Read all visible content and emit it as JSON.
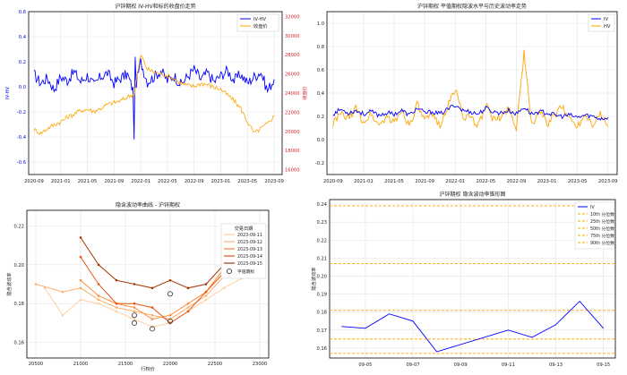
{
  "chart_data": [
    {
      "type": "line",
      "title": "沪锌期权 IV-HV和标的收盘价走势",
      "ylabel_left": "IV-HV",
      "ylabel_right": "收盘价",
      "ylim_left": [
        -0.7,
        0.6
      ],
      "yticks_left": [
        "-0.6",
        "-0.4",
        "-0.2",
        "0.0",
        "0.2",
        "0.4",
        "0.6"
      ],
      "yticks_left_values": [
        -0.6,
        -0.4,
        -0.2,
        0.0,
        0.2,
        0.4,
        0.6
      ],
      "ylim_right": [
        15500,
        32500
      ],
      "yticks_right": [
        "16000",
        "18000",
        "20000",
        "22000",
        "24000",
        "26000",
        "28000",
        "30000",
        "32000"
      ],
      "yticks_right_values": [
        16000,
        18000,
        20000,
        22000,
        24000,
        26000,
        28000,
        30000,
        32000
      ],
      "xticks": [
        "2020-09",
        "2021-01",
        "2021-05",
        "2021-09",
        "2022-01",
        "2022-05",
        "2022-09",
        "2023-01",
        "2023-05",
        "2023-09"
      ],
      "xticks_t": [
        0,
        4,
        8,
        12,
        16,
        20,
        24,
        28,
        32,
        36
      ],
      "xlim_t": [
        -0.8,
        37.2
      ],
      "legend": "top-right",
      "grid": true,
      "series": [
        {
          "name": "IV-HV",
          "color": "#0000ff",
          "axis": "left",
          "t": [
            0,
            1,
            2,
            3,
            4,
            5,
            6,
            7,
            8,
            9,
            10,
            11,
            12,
            13,
            14,
            15,
            16,
            17,
            18,
            19,
            20,
            21,
            22,
            23,
            24,
            25,
            26,
            27,
            28,
            29,
            30,
            31,
            32,
            33,
            34,
            35,
            36
          ],
          "y": [
            0.1,
            0.03,
            0.07,
            -0.02,
            0.08,
            0.05,
            0.12,
            0.04,
            0.09,
            0.01,
            0.08,
            0.11,
            0.03,
            0.07,
            0.1,
            -0.05,
            0.2,
            0.04,
            0.08,
            0.13,
            0.05,
            0.09,
            0.02,
            0.08,
            0.14,
            0.06,
            0.11,
            0.04,
            0.09,
            0.13,
            0.05,
            0.1,
            0.03,
            0.08,
            0.12,
            -0.03,
            0.06
          ]
        },
        {
          "name": "收盘价",
          "color": "#ffa500",
          "axis": "right",
          "t": [
            0,
            1,
            2,
            3,
            4,
            5,
            6,
            7,
            8,
            9,
            10,
            11,
            12,
            13,
            14,
            15,
            16,
            17,
            18,
            19,
            20,
            21,
            22,
            23,
            24,
            25,
            26,
            27,
            28,
            29,
            30,
            31,
            32,
            33,
            34,
            35,
            36
          ],
          "y": [
            20200,
            19800,
            20300,
            20700,
            21000,
            21500,
            21800,
            22200,
            22300,
            22100,
            22400,
            22800,
            23000,
            23200,
            23600,
            23900,
            28000,
            26500,
            26200,
            26000,
            25800,
            25500,
            25000,
            24800,
            24700,
            25000,
            24900,
            24600,
            24400,
            23800,
            23200,
            22400,
            21000,
            19800,
            20300,
            20800,
            21600
          ]
        }
      ]
    },
    {
      "type": "line",
      "title": "沪锌期权 平值期权隐波水平与历史波动率走势",
      "ylim": [
        -0.3,
        1.1
      ],
      "yticks": [
        "-0.2",
        "0.0",
        "0.2",
        "0.4",
        "0.6",
        "0.8",
        "1.0"
      ],
      "yticks_values": [
        -0.2,
        0.0,
        0.2,
        0.4,
        0.6,
        0.8,
        1.0
      ],
      "xticks": [
        "2020-09",
        "2021-01",
        "2021-05",
        "2021-09",
        "2022-01",
        "2022-05",
        "2022-09",
        "2023-01",
        "2023-05",
        "2023-09"
      ],
      "xticks_t": [
        0,
        4,
        8,
        12,
        16,
        20,
        24,
        28,
        32,
        36
      ],
      "xlim_t": [
        -0.8,
        37.2
      ],
      "legend": "top-right",
      "grid": true,
      "series": [
        {
          "name": "IV",
          "color": "#0000ff",
          "t": [
            0,
            1,
            2,
            3,
            4,
            5,
            6,
            7,
            8,
            9,
            10,
            11,
            12,
            13,
            14,
            15,
            16,
            17,
            18,
            19,
            20,
            21,
            22,
            23,
            24,
            25,
            26,
            27,
            28,
            29,
            30,
            31,
            32,
            33,
            34,
            35,
            36
          ],
          "y": [
            0.22,
            0.26,
            0.23,
            0.25,
            0.22,
            0.24,
            0.21,
            0.23,
            0.22,
            0.25,
            0.21,
            0.27,
            0.23,
            0.24,
            0.22,
            0.26,
            0.3,
            0.25,
            0.24,
            0.22,
            0.27,
            0.24,
            0.23,
            0.25,
            0.22,
            0.28,
            0.22,
            0.24,
            0.23,
            0.21,
            0.2,
            0.21,
            0.19,
            0.21,
            0.2,
            0.18,
            0.19
          ]
        },
        {
          "name": "HV",
          "color": "#ffa500",
          "t": [
            0,
            1,
            2,
            3,
            4,
            5,
            6,
            7,
            8,
            9,
            10,
            11,
            12,
            13,
            14,
            15,
            16,
            17,
            18,
            19,
            20,
            21,
            22,
            23,
            24,
            25,
            26,
            27,
            28,
            29,
            30,
            31,
            32,
            33,
            34,
            35,
            36
          ],
          "y": [
            0.14,
            0.22,
            0.18,
            0.27,
            0.15,
            0.22,
            0.12,
            0.2,
            0.14,
            0.26,
            0.12,
            0.3,
            0.16,
            0.21,
            0.13,
            0.28,
            0.44,
            0.21,
            0.18,
            0.12,
            0.3,
            0.17,
            0.19,
            0.28,
            0.1,
            0.74,
            0.12,
            0.26,
            0.13,
            0.21,
            0.28,
            0.18,
            0.12,
            0.22,
            0.14,
            0.22,
            0.11
          ]
        }
      ]
    },
    {
      "type": "line",
      "title": "隐含波动率曲线 - 沪锌期权",
      "xlabel": "行权价",
      "ylabel": "隐含波动率",
      "xlim": [
        20400,
        23100
      ],
      "ylim": [
        0.152,
        0.228
      ],
      "xticks": [
        "20500",
        "21000",
        "21500",
        "22000",
        "22500",
        "23000"
      ],
      "xticks_values": [
        20500,
        21000,
        21500,
        22000,
        22500,
        23000
      ],
      "yticks": [
        "0.16",
        "0.18",
        "0.20",
        "0.22"
      ],
      "yticks_values": [
        0.16,
        0.18,
        0.2,
        0.22
      ],
      "legend_title": "交易日期",
      "legend": "top-right",
      "grid": true,
      "atm_label": "平值期权",
      "series": [
        {
          "name": "2023-09-11",
          "color": "#fdd0a2",
          "x": [
            20600,
            20800,
            21000,
            21200,
            21400,
            21600,
            21800,
            22000,
            22200,
            22400,
            22600,
            22800
          ],
          "y": [
            0.188,
            0.174,
            0.182,
            0.18,
            0.176,
            0.172,
            0.168,
            0.17,
            0.176,
            0.182,
            0.188,
            0.193
          ]
        },
        {
          "name": "2023-09-12",
          "color": "#fdae6b",
          "x": [
            20500,
            20800,
            21000,
            21200,
            21400,
            21600,
            21800,
            22000,
            22200,
            22400,
            22600,
            22800,
            23000
          ],
          "y": [
            0.19,
            0.186,
            0.188,
            0.182,
            0.178,
            0.176,
            0.174,
            0.172,
            0.178,
            0.184,
            0.194,
            0.204,
            0.21
          ]
        },
        {
          "name": "2023-09-13",
          "color": "#fd8d3c",
          "x": [
            21000,
            21200,
            21400,
            21600,
            21800,
            22000,
            22200,
            22400,
            22600,
            22800,
            23000
          ],
          "y": [
            0.192,
            0.184,
            0.18,
            0.178,
            0.172,
            0.174,
            0.18,
            0.186,
            0.198,
            0.21,
            0.216
          ]
        },
        {
          "name": "2023-09-14",
          "color": "#e6550d",
          "x": [
            21000,
            21200,
            21400,
            21600,
            21800,
            22000,
            22200,
            22400,
            22600,
            22800,
            23000
          ],
          "y": [
            0.204,
            0.19,
            0.18,
            0.18,
            0.178,
            0.17,
            0.176,
            0.186,
            0.196,
            0.2,
            0.218
          ]
        },
        {
          "name": "2023-09-15",
          "color": "#a63603",
          "x": [
            21000,
            21200,
            21400,
            21600,
            21800,
            22000,
            22200,
            22400,
            22600,
            22800,
            23000
          ],
          "y": [
            0.214,
            0.2,
            0.192,
            0.19,
            0.188,
            0.192,
            0.188,
            0.19,
            0.2,
            0.204,
            0.218
          ]
        }
      ],
      "atm_points": [
        {
          "x": 21600,
          "y": 0.174
        },
        {
          "x": 21600,
          "y": 0.17
        },
        {
          "x": 21800,
          "y": 0.167
        },
        {
          "x": 22000,
          "y": 0.185
        },
        {
          "x": 22000,
          "y": 0.171
        }
      ]
    },
    {
      "type": "line",
      "title": "沪锌期权 隐含波动率锥形图",
      "ylabel": "隐含波动率",
      "ylim": [
        0.1545,
        0.2425
      ],
      "yticks": [
        "0.16",
        "0.17",
        "0.18",
        "0.19",
        "0.20",
        "0.21",
        "0.22",
        "0.23",
        "0.24"
      ],
      "yticks_values": [
        0.16,
        0.17,
        0.18,
        0.19,
        0.2,
        0.21,
        0.22,
        0.23,
        0.24
      ],
      "x": [
        "09-04",
        "09-05",
        "09-06",
        "09-07",
        "09-08",
        "09-11",
        "09-12",
        "09-13",
        "09-14",
        "09-15"
      ],
      "x_days": [
        4,
        5,
        6,
        7,
        8,
        11,
        12,
        13,
        14,
        15
      ],
      "xticks": [
        "09-05",
        "09-07",
        "09-09",
        "09-11",
        "09-13",
        "09-15"
      ],
      "xticks_days": [
        5,
        7,
        9,
        11,
        13,
        15
      ],
      "xlim_days": [
        3.5,
        15.5
      ],
      "legend": "top-right",
      "grid": true,
      "series": [
        {
          "name": "IV",
          "color": "#0000ff",
          "values": [
            0.172,
            0.171,
            0.179,
            0.175,
            0.158,
            0.17,
            0.166,
            0.173,
            0.186,
            0.171
          ]
        }
      ],
      "percentiles": [
        {
          "name": "10th 分位数",
          "value": 0.157,
          "color": "#ffa500"
        },
        {
          "name": "25th 分位数",
          "value": 0.165,
          "color": "#ffa500"
        },
        {
          "name": "50th 分位数",
          "value": 0.181,
          "color": "#ffa500"
        },
        {
          "name": "75th 分位数",
          "value": 0.207,
          "color": "#ffa500"
        },
        {
          "name": "90th 分位数",
          "value": 0.239,
          "color": "#ffa500"
        }
      ]
    }
  ]
}
